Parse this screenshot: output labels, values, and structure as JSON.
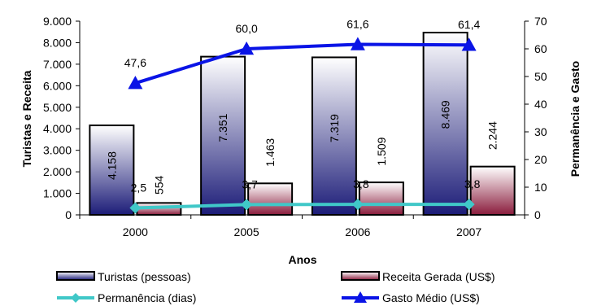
{
  "chart_data": {
    "type": "bar",
    "categories": [
      "2000",
      "2005",
      "2006",
      "2007"
    ],
    "xlabel": "Anos",
    "ylabel_left": "Turistas e Receita",
    "ylabel_right": "Permanência e Gasto",
    "ylim_left": [
      0,
      9000
    ],
    "ylim_right": [
      0,
      70
    ],
    "yticks_left": [
      "0",
      "1.000",
      "2.000",
      "3.000",
      "4.000",
      "5.000",
      "6.000",
      "7.000",
      "8.000",
      "9.000"
    ],
    "yticks_right": [
      "0",
      "10",
      "20",
      "30",
      "40",
      "50",
      "60",
      "70"
    ],
    "series": [
      {
        "name": "Turistas (pessoas)",
        "kind": "bar",
        "axis": "left",
        "values": [
          4158,
          7351,
          7319,
          8469
        ],
        "labels": [
          "4.158",
          "7.351",
          "7.319",
          "8.469"
        ],
        "color_top": "#ffffff",
        "color_bottom": "#1c1c78"
      },
      {
        "name": "Receita Gerada (US$)",
        "kind": "bar",
        "axis": "left",
        "values": [
          554,
          1463,
          1509,
          2244
        ],
        "labels": [
          "554",
          "1.463",
          "1.509",
          "2.244"
        ],
        "color_top": "#ffffff",
        "color_bottom": "#8a1c3c"
      },
      {
        "name": "Permanência (dias)",
        "kind": "line",
        "axis": "right",
        "values": [
          2.5,
          3.7,
          3.8,
          3.8
        ],
        "labels": [
          "2,5",
          "3,7",
          "3,8",
          "3,8"
        ],
        "color": "#40c8c8",
        "marker": "diamond"
      },
      {
        "name": "Gasto Médio (US$)",
        "kind": "line",
        "axis": "right",
        "values": [
          47.6,
          60.0,
          61.6,
          61.4
        ],
        "labels": [
          "47,6",
          "60,0",
          "61,6",
          "61,4"
        ],
        "color": "#0a14e6",
        "marker": "triangle"
      }
    ],
    "legend_position": "bottom",
    "grid": false
  }
}
